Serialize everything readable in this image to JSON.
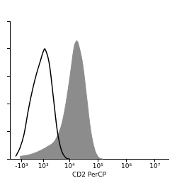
{
  "chart_data": {
    "type": "line",
    "x_label": "CD2 PerCP",
    "xlim": [
      -3000,
      30000000
    ],
    "xticks": [
      {
        "value": -1000,
        "label": "-10³"
      },
      {
        "value": 1000,
        "label": "10³"
      },
      {
        "value": 10000,
        "label": "10⁴"
      },
      {
        "value": 100000,
        "label": "10⁵"
      },
      {
        "value": 1000000,
        "label": "10⁶"
      },
      {
        "value": 10000000,
        "label": "10⁷"
      }
    ],
    "ylim": [
      0,
      100
    ],
    "yticks": [
      0,
      20,
      40,
      60,
      80,
      100
    ],
    "tick_labels": "x",
    "grid": false,
    "series": [
      {
        "type": "area",
        "color": "#8c8c8c",
        "x": [
          -1190,
          -350,
          340,
          1190,
          2620,
          3710,
          5250,
          7400,
          10400,
          14700,
          17900,
          20400,
          28700,
          40300,
          56600,
          79600,
          110000,
          155000
        ],
        "values": [
          2,
          3,
          5,
          8,
          12,
          17,
          25,
          40,
          60,
          82,
          86,
          84,
          70,
          45,
          20,
          6,
          1,
          0
        ]
      },
      {
        "type": "line",
        "color": "#000000",
        "x": [
          -1800,
          -1190,
          -730,
          -350,
          0,
          340,
          720,
          990,
          1190,
          1800,
          2620,
          3710,
          5250,
          7400,
          10400
        ],
        "values": [
          2,
          8,
          18,
          35,
          50,
          62,
          72,
          78,
          80,
          70,
          45,
          20,
          6,
          1,
          0
        ]
      }
    ]
  }
}
